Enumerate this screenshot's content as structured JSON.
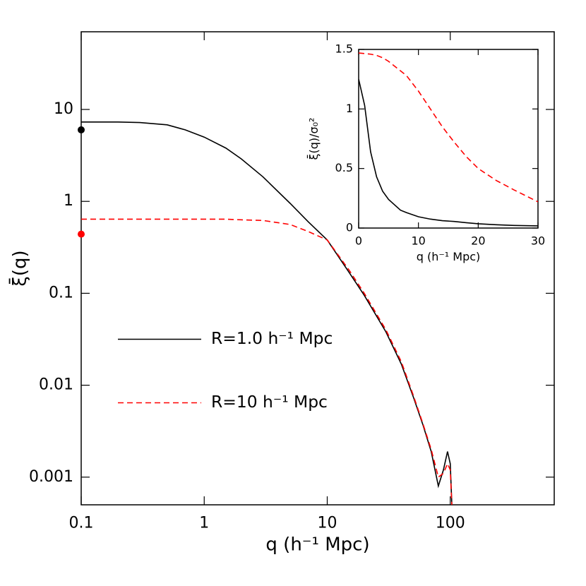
{
  "chart_data": [
    {
      "type": "line",
      "xlabel": "q (h⁻¹ Mpc)",
      "ylabel": "ξ̄(q)",
      "xlog": true,
      "ylog": true,
      "xlim": [
        0.1,
        700
      ],
      "ylim": [
        0.0005,
        70
      ],
      "xticks": [
        0.1,
        1,
        10,
        100
      ],
      "yticks": [
        0.001,
        0.01,
        0.1,
        1,
        10
      ],
      "legend": "center left",
      "x": [
        0.1,
        0.2,
        0.3,
        0.5,
        0.7,
        1,
        1.5,
        2,
        3,
        5,
        7,
        10,
        15,
        20,
        30,
        40,
        50,
        60,
        70,
        80,
        88,
        95,
        100,
        103
      ],
      "series": [
        {
          "name": "R=1.0 h⁻¹ Mpc",
          "color": "#000000",
          "linestyle": "solid",
          "values": [
            7.3,
            7.3,
            7.2,
            6.8,
            6.0,
            5.0,
            3.8,
            2.9,
            1.85,
            0.95,
            0.6,
            0.38,
            0.17,
            0.095,
            0.038,
            0.017,
            0.0075,
            0.0037,
            0.0019,
            0.0008,
            0.0012,
            0.0019,
            0.0014,
            0.0005
          ]
        },
        {
          "name": "R=10 h⁻¹ Mpc",
          "color": "#ff0000",
          "linestyle": "dashed",
          "values": [
            0.64,
            0.64,
            0.64,
            0.64,
            0.64,
            0.64,
            0.64,
            0.63,
            0.62,
            0.56,
            0.47,
            0.38,
            0.18,
            0.1,
            0.04,
            0.018,
            0.0078,
            0.0038,
            0.002,
            0.001,
            0.0011,
            0.0014,
            0.0012,
            0.0005
          ]
        }
      ],
      "points": [
        {
          "x": 0.1,
          "y": 6.0,
          "color": "#000000"
        },
        {
          "x": 0.1,
          "y": 0.44,
          "color": "#ff0000"
        }
      ]
    },
    {
      "type": "line",
      "xlabel": "q (h⁻¹ Mpc)",
      "ylabel": "ξ̄(q)/σ₀²",
      "xlim": [
        0,
        30
      ],
      "ylim": [
        0,
        1.5
      ],
      "xticks": [
        0,
        10,
        20,
        30
      ],
      "yticks": [
        0,
        0.5,
        1,
        1.5
      ],
      "x": [
        0,
        1,
        2,
        3,
        4,
        5,
        7,
        8,
        10,
        12,
        14,
        16,
        18,
        20,
        23,
        26,
        30
      ],
      "series": [
        {
          "name": "R=1.0 h⁻¹ Mpc",
          "color": "#000000",
          "linestyle": "solid",
          "values": [
            1.25,
            1.03,
            0.64,
            0.43,
            0.31,
            0.24,
            0.15,
            0.13,
            0.095,
            0.075,
            0.062,
            0.055,
            0.045,
            0.036,
            0.028,
            0.022,
            0.018
          ]
        },
        {
          "name": "R=10 h⁻¹ Mpc",
          "color": "#ff0000",
          "linestyle": "dashed",
          "values": [
            1.47,
            1.465,
            1.46,
            1.45,
            1.43,
            1.4,
            1.32,
            1.28,
            1.15,
            1.0,
            0.85,
            0.72,
            0.6,
            0.5,
            0.4,
            0.32,
            0.22
          ]
        }
      ]
    }
  ]
}
